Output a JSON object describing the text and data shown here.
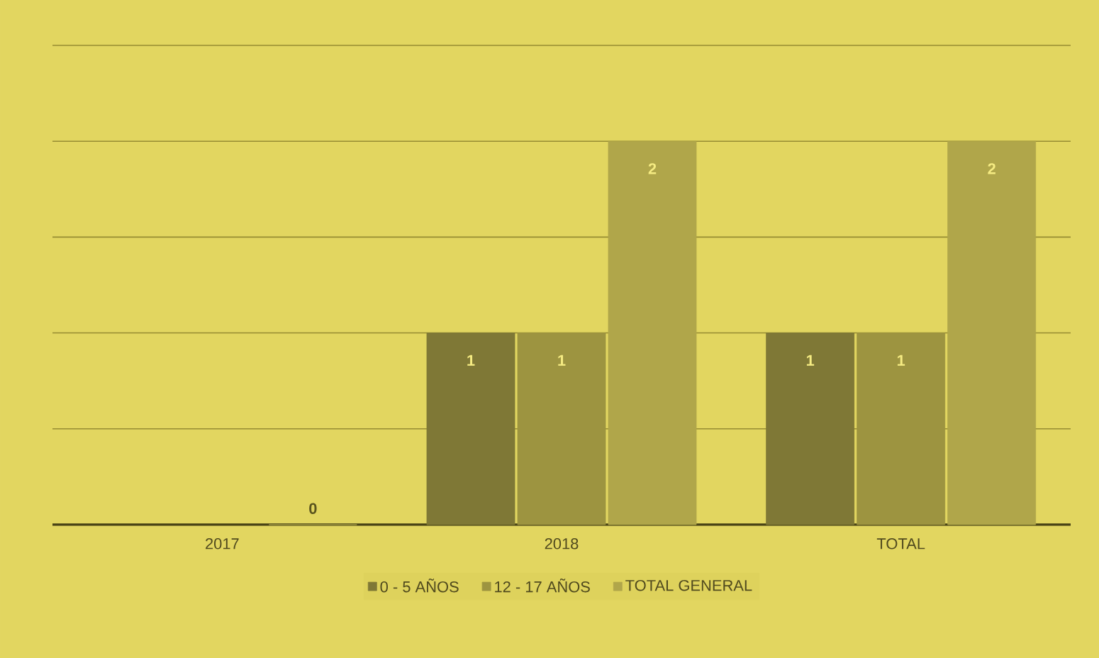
{
  "chart_data": {
    "type": "bar",
    "categories": [
      "2017",
      "2018",
      "TOTAL"
    ],
    "series": [
      {
        "name": "0 - 5 AÑOS",
        "color": "#7f7836",
        "values": [
          null,
          1,
          1
        ]
      },
      {
        "name": "12 - 17 AÑOS",
        "color": "#9d9440",
        "values": [
          null,
          1,
          1
        ]
      },
      {
        "name": "TOTAL GENERAL",
        "color": "#b0a64a",
        "values": [
          0,
          2,
          2
        ]
      }
    ],
    "ylim": [
      0,
      2.5
    ],
    "yticks": [
      {
        "value": 0,
        "label": null
      },
      {
        "value": 0.5,
        "label": null
      },
      {
        "value": 1,
        "label": null
      },
      {
        "value": 1.5,
        "label": null
      },
      {
        "value": 2,
        "label": null
      },
      {
        "value": 2.5,
        "label": null
      }
    ],
    "tick_labels": "x",
    "grid": "y",
    "legend": "bottom",
    "data_labels": true
  }
}
